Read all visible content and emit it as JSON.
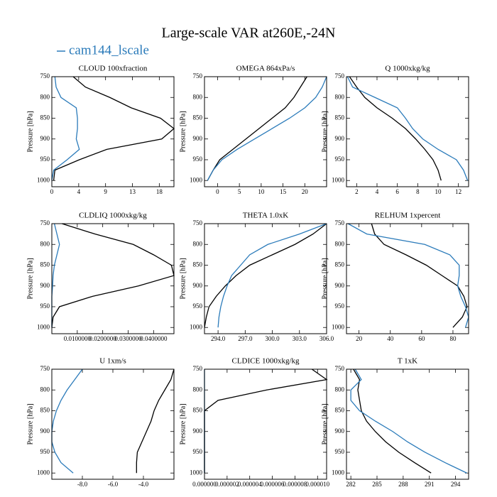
{
  "title": "Large-scale VAR at260E,-24N",
  "chart_data": [
    {
      "type": "line",
      "title": "CLOUD  100xfraction",
      "ylabel": "Pressure [hPa]",
      "y": [
        750,
        775,
        800,
        825,
        850,
        875,
        900,
        925,
        950,
        975,
        1000
      ],
      "xlim": [
        0,
        20
      ],
      "xticks": [
        0,
        {
          "value": 4.4,
          "label": "4"
        },
        {
          "value": 8.8,
          "label": "9"
        },
        {
          "value": 13.2,
          "label": "13"
        },
        {
          "value": 17.6,
          "label": "18"
        }
      ],
      "ylim": [
        1015,
        750
      ],
      "yticks": [
        750,
        800,
        850,
        900,
        950,
        1000
      ],
      "series": [
        {
          "color": "#000000",
          "values": [
            3.5,
            5.5,
            9.5,
            13,
            17.8,
            20,
            18,
            9,
            4.5,
            0.5,
            0.3
          ]
        },
        {
          "name": "cam144_lscale",
          "color": "#2b7bba",
          "values": [
            0.5,
            0.7,
            1.5,
            4.0,
            4.2,
            4.2,
            4.0,
            4.5,
            2.5,
            0.3,
            0
          ]
        }
      ]
    },
    {
      "type": "line",
      "title": "OMEGA  864xPa/s",
      "ylabel": "Pressure [hPa]",
      "y": [
        750,
        775,
        800,
        825,
        850,
        875,
        900,
        925,
        950,
        975,
        1000
      ],
      "xlim": [
        -3,
        25
      ],
      "xticks": [
        0,
        5,
        10,
        15,
        20
      ],
      "ylim": [
        1015,
        750
      ],
      "yticks": [
        750,
        800,
        850,
        900,
        950,
        1000
      ],
      "series": [
        {
          "color": "#000000",
          "values": [
            20.5,
            19,
            17.5,
            15.5,
            12.5,
            9.5,
            6.5,
            3.5,
            0.5,
            -1,
            -2.3
          ]
        },
        {
          "name": "cam144_lscale",
          "color": "#2b7bba",
          "values": [
            25,
            24,
            22.5,
            20,
            16.5,
            12.5,
            8.5,
            4.5,
            1,
            -1,
            -2.3
          ]
        }
      ]
    },
    {
      "type": "line",
      "title": "Q  1000xkg/kg",
      "ylabel": "Pressure [hPa]",
      "y": [
        750,
        775,
        800,
        825,
        850,
        875,
        900,
        925,
        950,
        975,
        1000
      ],
      "xlim": [
        1,
        13
      ],
      "xticks": [
        2,
        4,
        6,
        8,
        10,
        12
      ],
      "ylim": [
        1015,
        750
      ],
      "yticks": [
        750,
        800,
        850,
        900,
        950,
        1000
      ],
      "series": [
        {
          "color": "#000000",
          "values": [
            1.3,
            2,
            2.8,
            4,
            5.5,
            6.8,
            7.8,
            8.7,
            9.5,
            10,
            10.3
          ]
        },
        {
          "name": "cam144_lscale",
          "color": "#2b7bba",
          "values": [
            1.1,
            1.6,
            3.8,
            6,
            6.8,
            7.5,
            8.5,
            10,
            11.8,
            12.5,
            12.9
          ]
        }
      ]
    },
    {
      "type": "line",
      "title": "CLDLIQ  1000xkg/kg",
      "ylabel": "Pressure [hPa]",
      "y": [
        750,
        775,
        800,
        825,
        850,
        875,
        900,
        925,
        950,
        975,
        1000
      ],
      "xlim": [
        0,
        0.048
      ],
      "xticks": [
        {
          "value": 0.01,
          "label": "0.0100000"
        },
        {
          "value": 0.02,
          "label": "0.0200000"
        },
        {
          "value": 0.03,
          "label": "0.0300000"
        },
        {
          "value": 0.04,
          "label": "0.0400000"
        }
      ],
      "ylim": [
        1015,
        750
      ],
      "yticks": [
        750,
        800,
        850,
        900,
        950,
        1000
      ],
      "series": [
        {
          "color": "#000000",
          "values": [
            0.004,
            0.017,
            0.032,
            0.04,
            0.047,
            0.048,
            0.034,
            0.016,
            0.003,
            0.0005,
            0
          ]
        },
        {
          "name": "cam144_lscale",
          "color": "#2b7bba",
          "values": [
            0.001,
            0.002,
            0.003,
            0.002,
            0.001,
            0.0005,
            0.0003,
            0,
            0,
            0,
            0
          ]
        }
      ]
    },
    {
      "type": "line",
      "title": "THETA  1.0xK",
      "ylabel": "Pressure [hPa]",
      "y": [
        750,
        775,
        800,
        825,
        850,
        875,
        900,
        925,
        950,
        975,
        1000
      ],
      "xlim": [
        292.5,
        306
      ],
      "xticks": [
        {
          "value": 294,
          "label": "294.0"
        },
        {
          "value": 297,
          "label": "297.0"
        },
        {
          "value": 300,
          "label": "300.0"
        },
        {
          "value": 303,
          "label": "303.0"
        },
        {
          "value": 306,
          "label": "306.0"
        }
      ],
      "ylim": [
        1015,
        750
      ],
      "yticks": [
        750,
        800,
        850,
        900,
        950,
        1000
      ],
      "series": [
        {
          "color": "#000000",
          "values": [
            306,
            304.5,
            302.5,
            300,
            297.5,
            296,
            294.8,
            293.8,
            293,
            292.7,
            292.5
          ]
        },
        {
          "name": "cam144_lscale",
          "color": "#2b7bba",
          "values": [
            306,
            303,
            299.5,
            297.5,
            296.5,
            295.5,
            295,
            294.6,
            294.3,
            294.1,
            294
          ]
        }
      ]
    },
    {
      "type": "line",
      "title": "RELHUM  1xpercent",
      "ylabel": "Pressure [hPa]",
      "y": [
        750,
        775,
        800,
        825,
        850,
        875,
        900,
        925,
        950,
        975,
        1000
      ],
      "xlim": [
        12,
        90
      ],
      "xticks": [
        20,
        40,
        60,
        80
      ],
      "ylim": [
        1015,
        750
      ],
      "yticks": [
        750,
        800,
        850,
        900,
        950,
        1000
      ],
      "series": [
        {
          "color": "#000000",
          "values": [
            28,
            30,
            36,
            50,
            63,
            73,
            83,
            87,
            89,
            86,
            80
          ]
        },
        {
          "name": "cam144_lscale",
          "color": "#2b7bba",
          "values": [
            13,
            25,
            62,
            78,
            84,
            84,
            83,
            85,
            88,
            90,
            88
          ]
        }
      ]
    },
    {
      "type": "line",
      "title": "U  1xm/s",
      "ylabel": "Pressure [hPa]",
      "y": [
        750,
        775,
        800,
        825,
        850,
        875,
        900,
        925,
        950,
        975,
        1000
      ],
      "xlim": [
        -10,
        -2
      ],
      "xticks": [
        {
          "value": -8,
          "label": "-8.0"
        },
        {
          "value": -6,
          "label": "-6.0"
        },
        {
          "value": -4,
          "label": "-4.0"
        }
      ],
      "ylim": [
        1015,
        750
      ],
      "yticks": [
        750,
        800,
        850,
        900,
        950,
        1000
      ],
      "series": [
        {
          "color": "#000000",
          "values": [
            -2,
            -2.2,
            -2.6,
            -3,
            -3.3,
            -3.5,
            -3.8,
            -4.1,
            -4.4,
            -4.45,
            -4.45
          ]
        },
        {
          "name": "cam144_lscale",
          "color": "#2b7bba",
          "values": [
            -8,
            -8.5,
            -9,
            -9.4,
            -9.7,
            -9.9,
            -10,
            -10,
            -9.8,
            -9.4,
            -8.6
          ]
        }
      ]
    },
    {
      "type": "line",
      "title": "CLDICE  1000xkg/kg",
      "ylabel": "Pressure [hPa]",
      "y": [
        750,
        775,
        800,
        825,
        850,
        875,
        900,
        925,
        950,
        975,
        1000
      ],
      "xlim": [
        0,
        1.08e-05
      ],
      "xticks": [
        {
          "value": 0,
          "label": "0.000000"
        },
        {
          "value": 2e-06,
          "label": "0.000002"
        },
        {
          "value": 4e-06,
          "label": "0.000004"
        },
        {
          "value": 6e-06,
          "label": "0.000006"
        },
        {
          "value": 8e-06,
          "label": "0.000008"
        },
        {
          "value": 1e-05,
          "label": "0.000010"
        }
      ],
      "ylim": [
        1015,
        750
      ],
      "yticks": [
        750,
        800,
        850,
        900,
        950,
        1000
      ],
      "series": [
        {
          "color": "#000000",
          "values": [
            9.5e-06,
            1.08e-05,
            5.5e-06,
            1.2e-06,
            0,
            0,
            0,
            0,
            0,
            0,
            0
          ]
        },
        {
          "name": "cam144_lscale",
          "color": "#2b7bba",
          "values": [
            0,
            0,
            0,
            0,
            0,
            0,
            0,
            0,
            0,
            0,
            0
          ]
        }
      ]
    },
    {
      "type": "line",
      "title": "T  1xK",
      "ylabel": "Pressure [hPa]",
      "y": [
        750,
        775,
        800,
        825,
        850,
        875,
        900,
        925,
        950,
        975,
        1000
      ],
      "xlim": [
        281.5,
        295.5
      ],
      "xticks": [
        282,
        285,
        288,
        291,
        294
      ],
      "ylim": [
        1015,
        750
      ],
      "yticks": [
        750,
        800,
        850,
        900,
        950,
        1000
      ],
      "series": [
        {
          "color": "#000000",
          "values": [
            282.3,
            283,
            282.8,
            283,
            283.2,
            283.8,
            284.8,
            286,
            287.5,
            289.3,
            291.2
          ]
        },
        {
          "name": "cam144_lscale",
          "color": "#2b7bba",
          "values": [
            282.5,
            283.2,
            282,
            282,
            283,
            284.8,
            286.8,
            288.5,
            290.5,
            292.8,
            295.3
          ]
        }
      ]
    }
  ]
}
